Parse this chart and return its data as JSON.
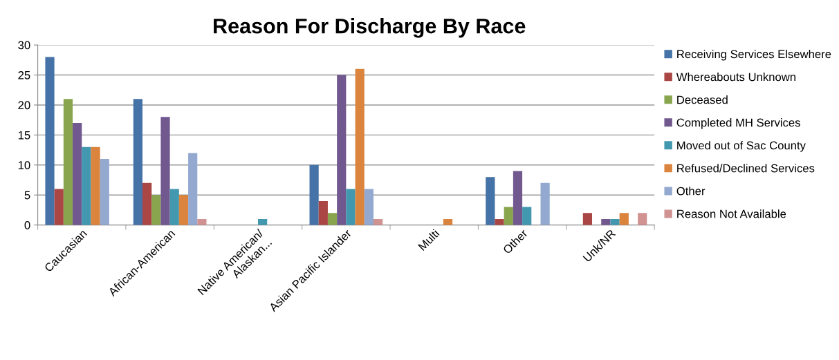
{
  "chart_data": {
    "type": "bar",
    "title": "Reason For Discharge By Race",
    "categories": [
      "Caucasian",
      "African-American",
      "Native American/Alaskan...",
      "Asian Pacific Islander",
      "Multi",
      "Other",
      "Unk/NR"
    ],
    "series": [
      {
        "name": "Receiving Services Elsewhere",
        "color": "#4572a7",
        "values": [
          28,
          21,
          0,
          10,
          0,
          8,
          0
        ]
      },
      {
        "name": "Whereabouts Unknown",
        "color": "#aa4643",
        "values": [
          6,
          7,
          0,
          4,
          0,
          1,
          2
        ]
      },
      {
        "name": "Deceased",
        "color": "#89a54e",
        "values": [
          21,
          5,
          0,
          2,
          0,
          3,
          0
        ]
      },
      {
        "name": "Completed MH Services",
        "color": "#71588f",
        "values": [
          17,
          18,
          0,
          25,
          0,
          9,
          1
        ]
      },
      {
        "name": "Moved out of Sac County",
        "color": "#4198af",
        "values": [
          13,
          6,
          1,
          6,
          0,
          3,
          1
        ]
      },
      {
        "name": "Refused/Declined Services",
        "color": "#db843d",
        "values": [
          13,
          5,
          0,
          26,
          1,
          0,
          2
        ]
      },
      {
        "name": "Other",
        "color": "#93a9cf",
        "values": [
          11,
          12,
          0,
          6,
          0,
          7,
          0
        ]
      },
      {
        "name": "Reason Not Available",
        "color": "#d19392",
        "values": [
          0,
          1,
          0,
          1,
          0,
          0,
          2
        ]
      }
    ],
    "ylim": [
      0,
      30
    ],
    "yticks": [
      0,
      5,
      10,
      15,
      20,
      25,
      30
    ],
    "grid": "y",
    "legend": "right"
  }
}
